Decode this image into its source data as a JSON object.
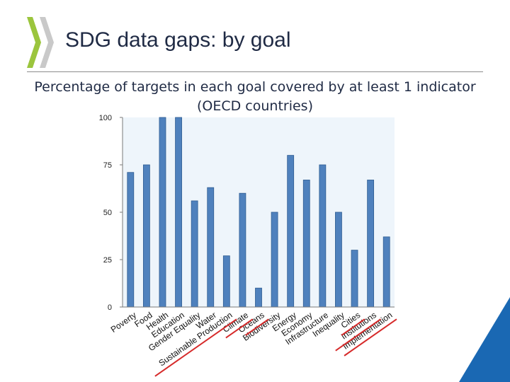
{
  "slide": {
    "title": "SDG data gaps: by goal",
    "subtitle_line1": "Percentage of targets in each goal covered by at least 1 indicator",
    "subtitle_line2": "(OECD countries)"
  },
  "colors": {
    "bar": "#4f81bd",
    "bar_edge": "#2f5d92",
    "plot_bg": "#eef5fb",
    "logo_green": "#9bc53d",
    "corner_blue": "#1a68b3",
    "underline": "#d62a2a",
    "title_text": "#1f2a44"
  },
  "chart_data": {
    "type": "bar",
    "categories": [
      "Poverty",
      "Food",
      "Health",
      "Education",
      "Gender Equality",
      "Water",
      "Energy",
      "Economy",
      "Infrastructure",
      "Inequality",
      "Cities",
      "Sustainable Production",
      "Climate",
      "Oceans",
      "Biodiversity",
      "Institutions",
      "Implementation"
    ],
    "values": [
      71,
      75,
      100,
      100,
      56,
      63,
      80,
      67,
      75,
      50,
      30,
      27,
      60,
      10,
      50,
      67,
      37
    ],
    "display_order": [
      "Poverty",
      "Food",
      "Health",
      "Education",
      "Gender Equality",
      "Water",
      "Sustainable Production",
      "Climate",
      "Oceans",
      "Biodiversity",
      "Energy",
      "Economy",
      "Infrastructure",
      "Inequality",
      "Cities",
      "Institutions",
      "Implementation"
    ],
    "ylim": [
      0,
      100
    ],
    "yticks": [
      0,
      25,
      50,
      75,
      100
    ],
    "underlined": [
      "Sustainable Production",
      "Climate",
      "Oceans",
      "Cities",
      "Institutions",
      "Implementation"
    ],
    "grid": false,
    "legend": "none"
  }
}
